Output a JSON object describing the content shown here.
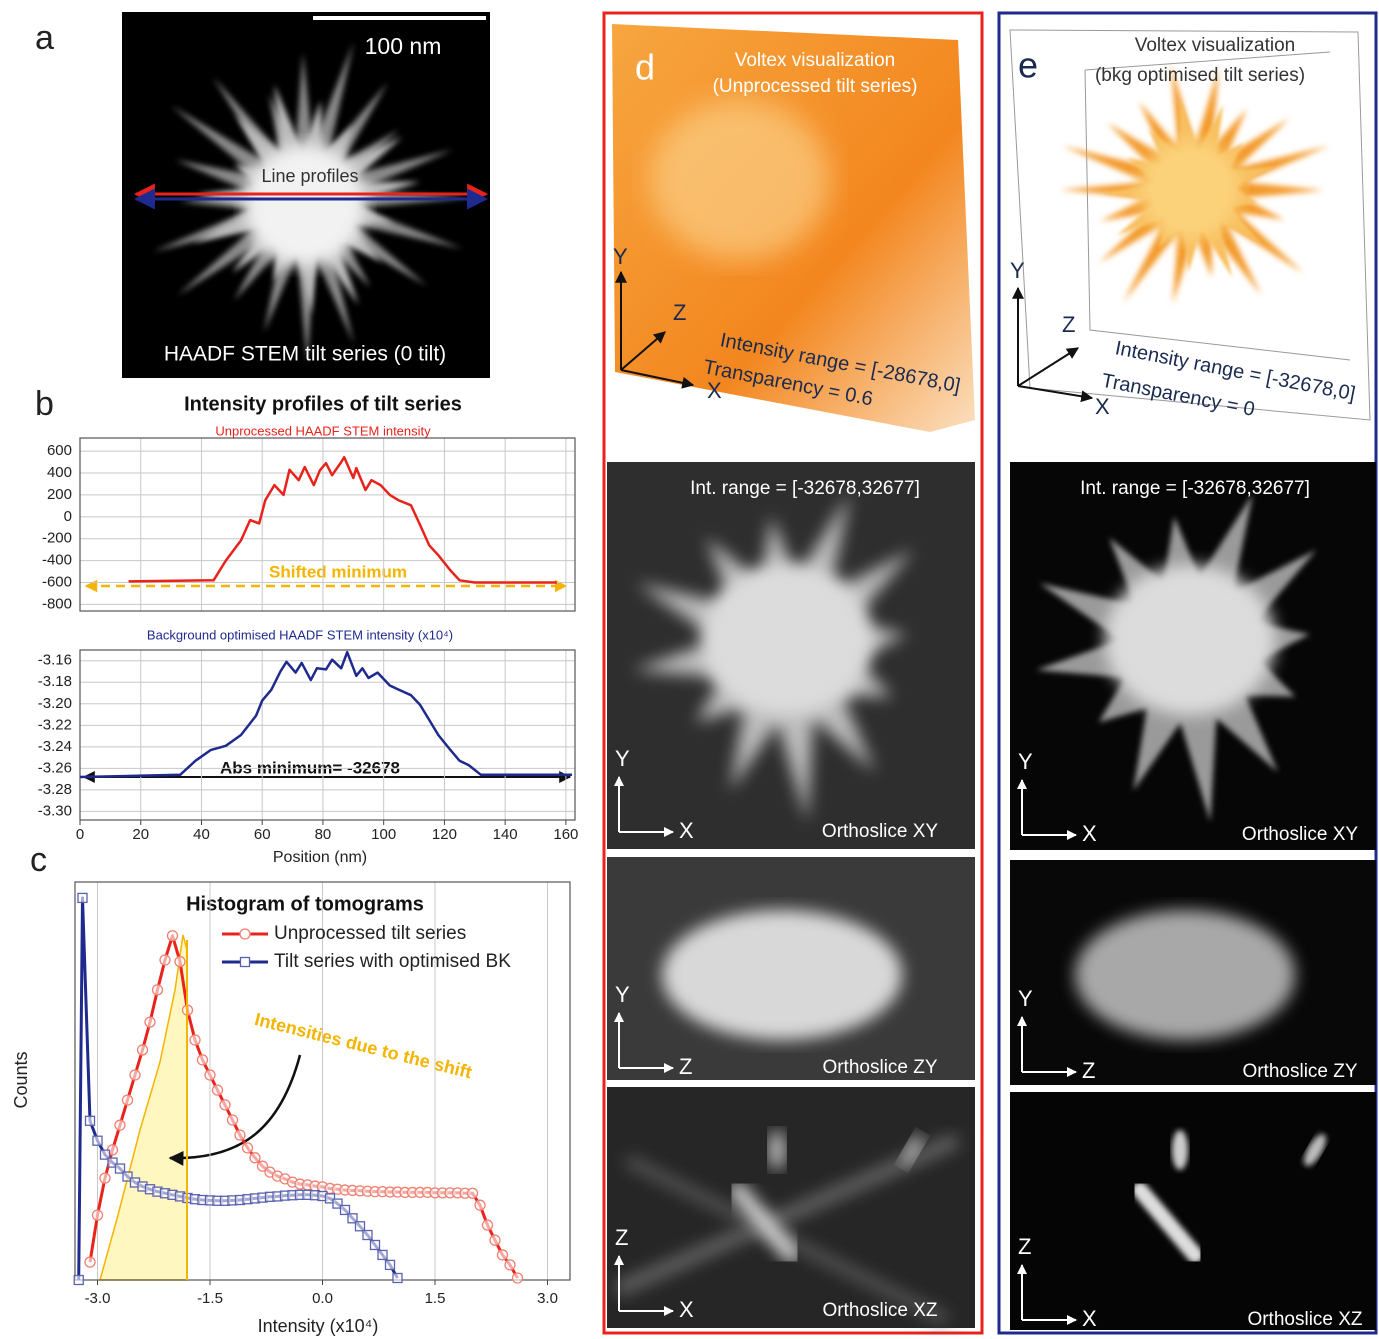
{
  "panels": {
    "a": {
      "label": "a",
      "scale_bar": "100 nm",
      "annotation": "Line profiles",
      "caption": "HAADF STEM tilt series (0 tilt)"
    },
    "b": {
      "label": "b"
    },
    "c": {
      "label": "c"
    },
    "d": {
      "label": "d",
      "title": [
        "Voltex visualization",
        "(Unprocessed tilt series)"
      ],
      "axes": [
        "Y",
        "Z",
        "X"
      ],
      "intensity_range": "Intensity range = [-28678,0]",
      "transparency": "Transparency = 0.6",
      "slice_range": "Int. range = [-32678,32677]",
      "slices": [
        {
          "name": "Orthoslice XY",
          "axes": [
            "Y",
            "X"
          ]
        },
        {
          "name": "Orthoslice ZY",
          "axes": [
            "Y",
            "Z"
          ]
        },
        {
          "name": "Orthoslice XZ",
          "axes": [
            "Z",
            "X"
          ]
        }
      ]
    },
    "e": {
      "label": "e",
      "title": [
        "Voltex visualization",
        "(bkg optimised tilt series)"
      ],
      "axes": [
        "Y",
        "Z",
        "X"
      ],
      "intensity_range": "Intensity range = [-32678,0]",
      "transparency": "Transparency = 0",
      "slice_range": "Int. range = [-32678,32677]",
      "slices": [
        {
          "name": "Orthoslice XY",
          "axes": [
            "Y",
            "X"
          ]
        },
        {
          "name": "Orthoslice ZY",
          "axes": [
            "Y",
            "Z"
          ]
        },
        {
          "name": "Orthoslice XZ",
          "axes": [
            "Z",
            "X"
          ]
        }
      ]
    }
  },
  "chart_data": [
    {
      "type": "line",
      "title": "Intensity profiles of tilt series",
      "subtitle": "Unprocessed HAADF STEM intensity",
      "x": [
        16,
        44,
        48,
        53,
        56,
        59,
        61,
        64,
        67,
        69,
        72,
        74,
        77,
        79,
        81,
        83,
        86,
        87,
        90,
        91,
        94,
        96,
        99,
        102,
        105,
        109,
        112,
        115,
        118,
        122,
        125,
        130,
        157
      ],
      "values": [
        -590,
        -580,
        -400,
        -215,
        -30,
        -60,
        150,
        290,
        200,
        430,
        335,
        455,
        290,
        425,
        490,
        380,
        500,
        545,
        355,
        445,
        245,
        335,
        290,
        200,
        150,
        105,
        -75,
        -260,
        -350,
        -490,
        -580,
        -600,
        -600
      ],
      "color": "#e8231c",
      "xlim": [
        0,
        163
      ],
      "xticks": [
        0,
        20,
        40,
        60,
        80,
        100,
        120,
        140,
        160
      ],
      "ylim": [
        -860,
        720
      ],
      "yticks": [
        600,
        400,
        200,
        0,
        -200,
        -400,
        -600,
        -800
      ],
      "grid": true,
      "annotation": "Shifted minimum"
    },
    {
      "type": "line",
      "subtitle": "Background optimised HAADF STEM intensity (x10⁴)",
      "x": [
        0,
        33,
        38,
        43,
        48,
        53,
        58,
        60,
        63,
        66,
        68,
        71,
        73,
        76,
        78,
        81,
        83,
        86,
        88,
        91,
        93,
        95,
        98,
        102,
        105,
        109,
        112,
        115,
        118,
        122,
        125,
        128,
        132,
        162
      ],
      "values": [
        -3.268,
        -3.266,
        -3.253,
        -3.243,
        -3.239,
        -3.229,
        -3.211,
        -3.197,
        -3.187,
        -3.17,
        -3.161,
        -3.171,
        -3.162,
        -3.178,
        -3.167,
        -3.168,
        -3.159,
        -3.167,
        -3.152,
        -3.174,
        -3.167,
        -3.176,
        -3.171,
        -3.183,
        -3.187,
        -3.192,
        -3.201,
        -3.215,
        -3.229,
        -3.243,
        -3.253,
        -3.257,
        -3.266,
        -3.266
      ],
      "color": "#1f2a8f",
      "xlabel": "Position (nm)",
      "xlim": [
        0,
        163
      ],
      "xticks": [
        0,
        20,
        40,
        60,
        80,
        100,
        120,
        140,
        160
      ],
      "ylim": [
        -3.308,
        -3.15
      ],
      "yticks": [
        -3.16,
        -3.18,
        {
          "value": -3.2,
          "label": "-3.20"
        },
        -3.22,
        -3.24,
        -3.26,
        -3.28,
        {
          "value": -3.3,
          "label": "-3.30"
        }
      ],
      "grid": true,
      "annotation": "Abs minimum= -32678"
    },
    {
      "type": "line",
      "title": "Histogram of tomograms",
      "xlabel": "Intensity (x10⁴)",
      "ylabel": "Counts",
      "series": [
        {
          "name": "Unprocessed tilt series",
          "color": "#e8231c",
          "marker": "circle",
          "x": [
            -3.1,
            -3.0,
            -2.9,
            -2.8,
            -2.7,
            -2.6,
            -2.5,
            -2.4,
            -2.3,
            -2.2,
            -2.1,
            -2.0,
            -1.9,
            -1.8,
            -1.7,
            -1.6,
            -1.5,
            -1.4,
            -1.3,
            -1.2,
            -1.1,
            -1.0,
            -0.9,
            -0.8,
            -0.7,
            -0.6,
            -0.5,
            -0.4,
            -0.3,
            -0.2,
            -0.1,
            0.0,
            0.1,
            0.2,
            0.3,
            0.4,
            0.5,
            0.6,
            0.7,
            0.8,
            0.9,
            1.0,
            1.1,
            1.2,
            1.3,
            1.4,
            1.5,
            1.6,
            1.7,
            1.8,
            1.9,
            2.0,
            2.1,
            2.2,
            2.3,
            2.4,
            2.5,
            2.6
          ],
          "values": [
            4.5,
            16.3,
            25.6,
            32.7,
            38.9,
            45.2,
            51.5,
            57.8,
            64.8,
            72.9,
            80.4,
            86.5,
            80,
            67.8,
            60.3,
            55.3,
            51.5,
            47.7,
            44,
            40.2,
            36.4,
            33.2,
            30.7,
            28.6,
            27.1,
            26.1,
            25.4,
            24.6,
            24.1,
            23.9,
            23.6,
            23.4,
            23.0,
            22.8,
            22.6,
            22.5,
            22.4,
            22.3,
            22.2,
            22.2,
            22.1,
            22.1,
            22.0,
            22.0,
            22.0,
            22.0,
            21.9,
            21.9,
            21.9,
            21.9,
            21.8,
            21.8,
            18.8,
            13.8,
            10,
            6.3,
            3.8,
            0.5
          ]
        },
        {
          "name": "Tilt series with optimised BK",
          "color": "#1f2a8f",
          "marker": "square",
          "x": [
            -3.25,
            -3.2,
            -3.1,
            -3.0,
            -2.9,
            -2.8,
            -2.7,
            -2.6,
            -2.5,
            -2.4,
            -2.3,
            -2.2,
            -2.1,
            -2.0,
            -1.9,
            -1.8,
            -1.7,
            -1.6,
            -1.5,
            -1.4,
            -1.3,
            -1.2,
            -1.1,
            -1.0,
            -0.9,
            -0.8,
            -0.7,
            -0.6,
            -0.5,
            -0.4,
            -0.3,
            -0.2,
            -0.1,
            0.0,
            0.1,
            0.2,
            0.3,
            0.4,
            0.5,
            0.6,
            0.7,
            0.8,
            0.9,
            1.0
          ],
          "values": [
            0,
            96,
            40,
            35,
            31.5,
            29.5,
            28,
            26,
            24.5,
            23.5,
            22.8,
            22.2,
            21.8,
            21.4,
            21.0,
            20.6,
            20.3,
            20.1,
            20.0,
            19.9,
            19.9,
            20.0,
            20.1,
            20.3,
            20.5,
            20.7,
            20.9,
            21.0,
            21.2,
            21.3,
            21.4,
            21.4,
            21.3,
            21.1,
            20.5,
            19.2,
            17.6,
            15.5,
            13.5,
            11.3,
            8.8,
            6.3,
            3.8,
            0.5
          ]
        }
      ],
      "xlim": [
        -3.3,
        3.3
      ],
      "xticks": [
        {
          "value": -3,
          "label": "-3.0"
        },
        -1.5,
        {
          "value": 0,
          "label": "0.0"
        },
        1.5,
        {
          "value": 3,
          "label": "3.0"
        }
      ],
      "ylim": [
        0,
        100
      ],
      "grid": true,
      "annotation": "Intensities due to the shift"
    }
  ]
}
